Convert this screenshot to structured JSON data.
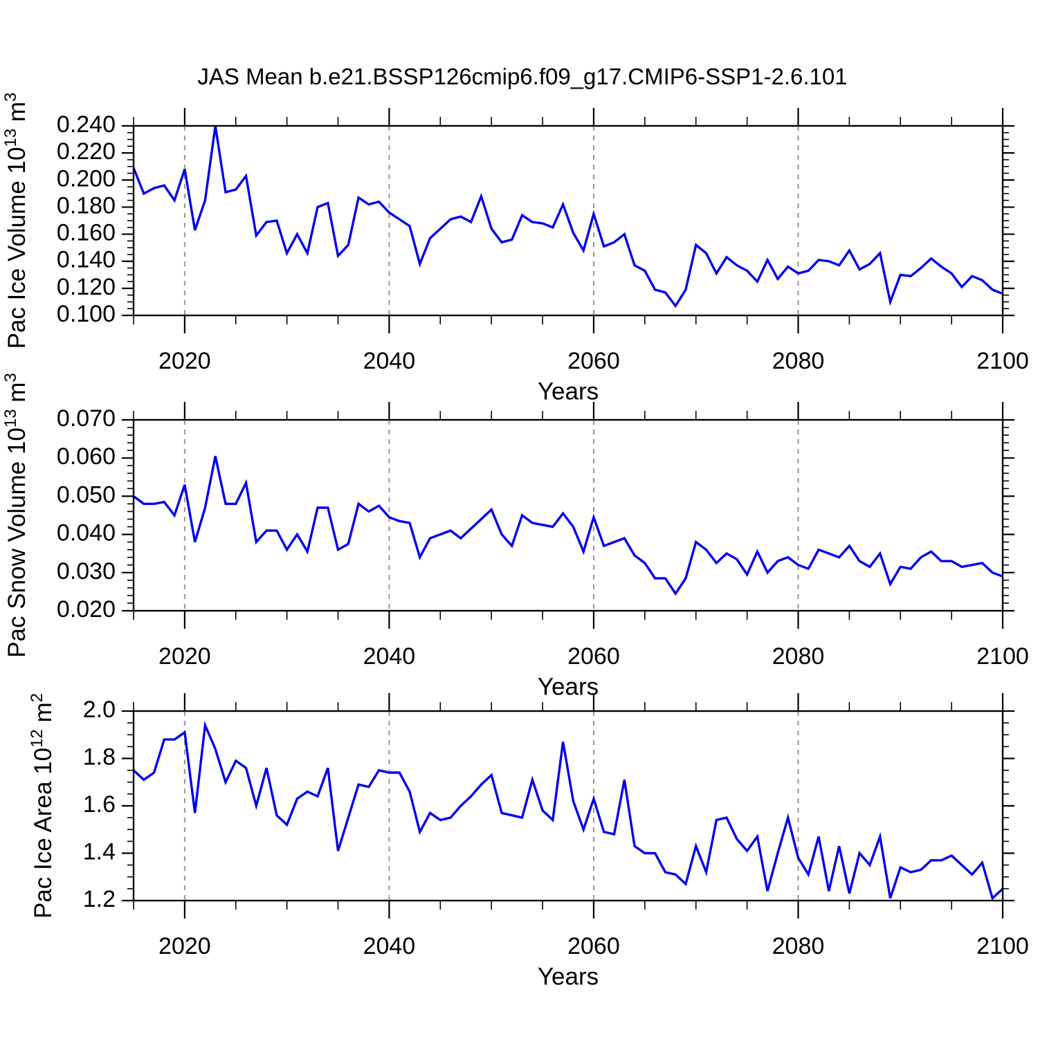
{
  "title": "JAS Mean b.e21.BSSP126cmip6.f09_g17.CMIP6-SSP1-2.6.101",
  "xlabel": "Years",
  "line_color": "#0000ee",
  "grid_color": "#979797",
  "xticks": [
    2020,
    2040,
    2060,
    2080,
    2100
  ],
  "xtick_labels": [
    "2020",
    "2040",
    "2060",
    "2080",
    "2100"
  ],
  "xminor_step": 5,
  "grid_years": [
    2020,
    2040,
    2060,
    2080
  ],
  "xlim": [
    2015,
    2100
  ],
  "years": [
    2015,
    2016,
    2017,
    2018,
    2019,
    2020,
    2021,
    2022,
    2023,
    2024,
    2025,
    2026,
    2027,
    2028,
    2029,
    2030,
    2031,
    2032,
    2033,
    2034,
    2035,
    2036,
    2037,
    2038,
    2039,
    2040,
    2041,
    2042,
    2043,
    2044,
    2045,
    2046,
    2047,
    2048,
    2049,
    2050,
    2051,
    2052,
    2053,
    2054,
    2055,
    2056,
    2057,
    2058,
    2059,
    2060,
    2061,
    2062,
    2063,
    2064,
    2065,
    2066,
    2067,
    2068,
    2069,
    2070,
    2071,
    2072,
    2073,
    2074,
    2075,
    2076,
    2077,
    2078,
    2079,
    2080,
    2081,
    2082,
    2083,
    2084,
    2085,
    2086,
    2087,
    2088,
    2089,
    2090,
    2091,
    2092,
    2093,
    2094,
    2095,
    2096,
    2097,
    2098,
    2099,
    2100
  ],
  "chart_data": [
    {
      "type": "line",
      "name": "pac-ice-volume",
      "ylabel_plain": "Pac Ice Volume 10^13 m^3",
      "ylabel_segments": [
        {
          "t": "Pac Ice Volume 10"
        },
        {
          "t": "13",
          "sup": true
        },
        {
          "t": " m"
        },
        {
          "t": "3",
          "sup": true
        }
      ],
      "ylim": [
        0.1,
        0.24
      ],
      "ytick_values": [
        0.24,
        0.22,
        0.2,
        0.18,
        0.16,
        0.14,
        0.12,
        0.1
      ],
      "ytick_labels": [
        "0.240",
        "0.220",
        "0.200",
        "0.180",
        "0.160",
        "0.140",
        "0.120",
        "0.100"
      ],
      "yminor_step": 0.005,
      "values": [
        0.209,
        0.19,
        0.194,
        0.196,
        0.185,
        0.208,
        0.163,
        0.185,
        0.24,
        0.191,
        0.193,
        0.203,
        0.159,
        0.169,
        0.17,
        0.146,
        0.16,
        0.146,
        0.18,
        0.183,
        0.144,
        0.152,
        0.187,
        0.182,
        0.184,
        0.176,
        0.171,
        0.166,
        0.138,
        0.157,
        0.164,
        0.171,
        0.173,
        0.169,
        0.188,
        0.164,
        0.154,
        0.156,
        0.174,
        0.169,
        0.168,
        0.165,
        0.182,
        0.161,
        0.148,
        0.175,
        0.151,
        0.154,
        0.16,
        0.137,
        0.133,
        0.119,
        0.117,
        0.107,
        0.119,
        0.152,
        0.146,
        0.131,
        0.143,
        0.137,
        0.133,
        0.125,
        0.141,
        0.127,
        0.136,
        0.131,
        0.133,
        0.141,
        0.14,
        0.137,
        0.148,
        0.134,
        0.138,
        0.146,
        0.11,
        0.13,
        0.129,
        0.135,
        0.142,
        0.136,
        0.131,
        0.121,
        0.129,
        0.126,
        0.119,
        0.116
      ]
    },
    {
      "type": "line",
      "name": "pac-snow-volume",
      "ylabel_plain": "Pac Snow Volume 10^13 m^3",
      "ylabel_segments": [
        {
          "t": "Pac Snow Volume 10"
        },
        {
          "t": "13",
          "sup": true
        },
        {
          "t": " m"
        },
        {
          "t": "3",
          "sup": true
        }
      ],
      "ylim": [
        0.02,
        0.07
      ],
      "ytick_values": [
        0.07,
        0.06,
        0.05,
        0.04,
        0.03,
        0.02
      ],
      "ytick_labels": [
        "0.070",
        "0.060",
        "0.050",
        "0.040",
        "0.030",
        "0.020"
      ],
      "yminor_step": 0.002,
      "values": [
        0.05,
        0.048,
        0.048,
        0.0485,
        0.045,
        0.053,
        0.038,
        0.047,
        0.0605,
        0.048,
        0.048,
        0.0535,
        0.038,
        0.041,
        0.041,
        0.036,
        0.04,
        0.0355,
        0.047,
        0.047,
        0.036,
        0.0375,
        0.048,
        0.046,
        0.0475,
        0.0445,
        0.0435,
        0.043,
        0.034,
        0.039,
        0.04,
        0.041,
        0.039,
        0.0415,
        0.044,
        0.0465,
        0.04,
        0.037,
        0.045,
        0.043,
        0.0425,
        0.042,
        0.0455,
        0.042,
        0.0355,
        0.0445,
        0.037,
        0.038,
        0.039,
        0.0345,
        0.0325,
        0.0285,
        0.0285,
        0.0245,
        0.0285,
        0.038,
        0.036,
        0.0325,
        0.035,
        0.0335,
        0.0295,
        0.0355,
        0.03,
        0.033,
        0.034,
        0.032,
        0.031,
        0.036,
        0.035,
        0.034,
        0.037,
        0.033,
        0.0315,
        0.035,
        0.027,
        0.0315,
        0.031,
        0.034,
        0.0355,
        0.033,
        0.033,
        0.0315,
        0.032,
        0.0325,
        0.03,
        0.029
      ]
    },
    {
      "type": "line",
      "name": "pac-ice-area",
      "ylabel_plain": "Pac Ice Area 10^12 m^2",
      "ylabel_segments": [
        {
          "t": "Pac Ice Area 10"
        },
        {
          "t": "12",
          "sup": true
        },
        {
          "t": " m"
        },
        {
          "t": "2",
          "sup": true
        }
      ],
      "ylim": [
        1.2,
        2.0
      ],
      "ytick_values": [
        2.0,
        1.8,
        1.6,
        1.4,
        1.2
      ],
      "ytick_labels": [
        "2.0",
        "1.8",
        "1.6",
        "1.4",
        "1.2"
      ],
      "yminor_step": 0.05,
      "values": [
        1.75,
        1.71,
        1.74,
        1.88,
        1.88,
        1.91,
        1.57,
        1.94,
        1.84,
        1.7,
        1.79,
        1.76,
        1.6,
        1.76,
        1.56,
        1.52,
        1.63,
        1.66,
        1.64,
        1.76,
        1.41,
        1.55,
        1.69,
        1.68,
        1.75,
        1.74,
        1.74,
        1.66,
        1.49,
        1.57,
        1.54,
        1.55,
        1.6,
        1.64,
        1.69,
        1.73,
        1.57,
        1.56,
        1.55,
        1.71,
        1.58,
        1.54,
        1.87,
        1.62,
        1.5,
        1.63,
        1.49,
        1.48,
        1.71,
        1.43,
        1.4,
        1.4,
        1.32,
        1.31,
        1.27,
        1.43,
        1.32,
        1.54,
        1.55,
        1.46,
        1.41,
        1.47,
        1.24,
        1.4,
        1.55,
        1.38,
        1.31,
        1.47,
        1.24,
        1.43,
        1.23,
        1.4,
        1.35,
        1.47,
        1.21,
        1.34,
        1.32,
        1.33,
        1.37,
        1.37,
        1.39,
        1.35,
        1.31,
        1.36,
        1.21,
        1.25
      ]
    }
  ]
}
